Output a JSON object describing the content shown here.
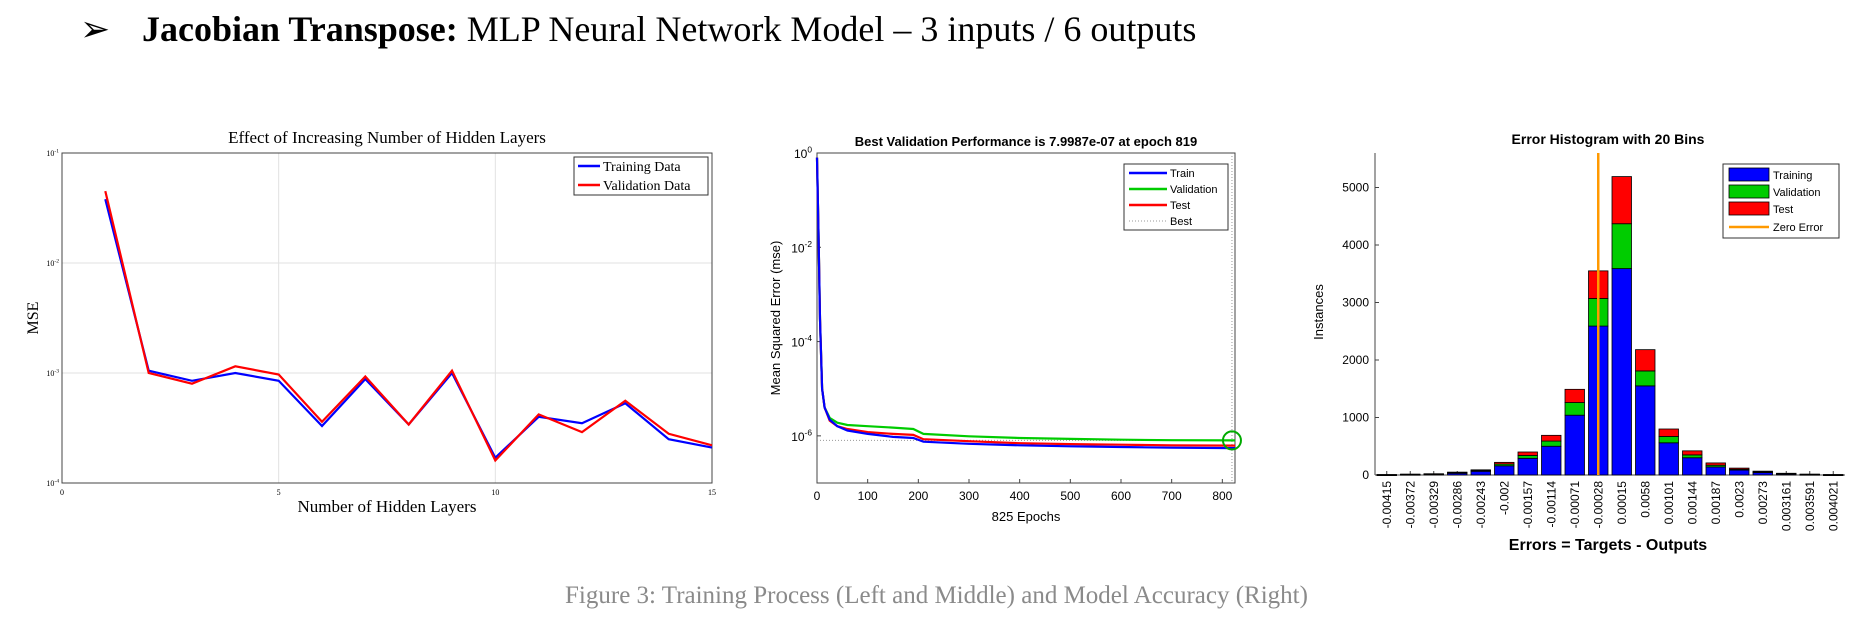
{
  "heading": {
    "bullet": "➢",
    "bold": "Jacobian Transpose:",
    "rest": " MLP Neural Network Model – 3 inputs / 6 outputs"
  },
  "caption": "Figure 3: Training Process (Left and Middle) and Model Accuracy (Right)",
  "chart_data": [
    {
      "type": "line",
      "title": "Effect of Increasing Number of Hidden Layers",
      "xlabel": "Number of Hidden Layers",
      "ylabel": "MSE",
      "xlim": [
        0,
        15
      ],
      "ylim_log10": [
        -4,
        -1
      ],
      "yscale": "log",
      "x_ticks": [
        "0",
        "5",
        "10",
        "15"
      ],
      "y_ticks": [
        "10^-4",
        "10^-3",
        "10^-2",
        "10^-1"
      ],
      "grid": true,
      "legend": "top-right",
      "x": [
        1,
        2,
        3,
        4,
        5,
        6,
        7,
        8,
        9,
        10,
        11,
        12,
        13,
        14,
        15
      ],
      "series": [
        {
          "name": "Training Data",
          "color": "#0000ff",
          "values": [
            0.038,
            0.00105,
            0.00085,
            0.001,
            0.00085,
            0.00033,
            0.00088,
            0.00034,
            0.001,
            0.00017,
            0.0004,
            0.00035,
            0.00053,
            0.00025,
            0.00021
          ]
        },
        {
          "name": "Validation Data",
          "color": "#ff0000",
          "values": [
            0.045,
            0.001,
            0.0008,
            0.00115,
            0.00097,
            0.00036,
            0.00093,
            0.00034,
            0.00105,
            0.00016,
            0.00042,
            0.00029,
            0.00056,
            0.00028,
            0.00022
          ]
        }
      ]
    },
    {
      "type": "line",
      "title": "Best Validation Performance is 7.9987e-07 at epoch 819",
      "xlabel": "825 Epochs",
      "ylabel": "Mean Squared Error  (mse)",
      "xlim": [
        0,
        825
      ],
      "ylim_log10": [
        -7,
        0
      ],
      "yscale": "log",
      "x_ticks": [
        "0",
        "100",
        "200",
        "300",
        "400",
        "500",
        "600",
        "700",
        "800"
      ],
      "y_ticks": [
        "10^0",
        "10^-2",
        "10^-4",
        "10^-6"
      ],
      "legend": "top-right",
      "best_epoch": 819,
      "best_value": 8e-07,
      "x": [
        0,
        3,
        6,
        10,
        15,
        25,
        40,
        60,
        100,
        150,
        190,
        210,
        300,
        400,
        500,
        600,
        700,
        825
      ],
      "series": [
        {
          "name": "Train",
          "color": "#0000ff",
          "values": [
            0.8,
            0.02,
            0.0003,
            1e-05,
            4e-06,
            2.2e-06,
            1.6e-06,
            1.3e-06,
            1.1e-06,
            9.5e-07,
            9e-07,
            7.5e-07,
            6.8e-07,
            6.3e-07,
            6e-07,
            5.8e-07,
            5.6e-07,
            5.5e-07
          ]
        },
        {
          "name": "Validation",
          "color": "#00cc00",
          "values": [
            0.8,
            0.02,
            0.0003,
            1e-05,
            4e-06,
            2.4e-06,
            1.9e-06,
            1.7e-06,
            1.6e-06,
            1.5e-06,
            1.4e-06,
            1.1e-06,
            9.8e-07,
            9e-07,
            8.6e-07,
            8.3e-07,
            8.1e-07,
            8e-07
          ]
        },
        {
          "name": "Test",
          "color": "#ff0000",
          "values": [
            0.8,
            0.02,
            0.0003,
            1e-05,
            4e-06,
            2.1e-06,
            1.6e-06,
            1.4e-06,
            1.2e-06,
            1.1e-06,
            1.05e-06,
            8.5e-07,
            7.7e-07,
            7e-07,
            6.7e-07,
            6.5e-07,
            6.3e-07,
            6.2e-07
          ]
        },
        {
          "name": "Best",
          "color": "#aaaaaa",
          "style": "dotted"
        }
      ]
    },
    {
      "type": "bar",
      "stacked": true,
      "title": "Error Histogram with 20 Bins",
      "xlabel": "Errors = Targets - Outputs",
      "ylabel": "Instances",
      "ylim": [
        0,
        5600
      ],
      "y_ticks": [
        "0",
        "1000",
        "2000",
        "3000",
        "4000",
        "5000"
      ],
      "legend": "top-right",
      "zero_error_bin": 9.5,
      "categories": [
        "-0.00415",
        "-0.00372",
        "-0.00329",
        "-0.00286",
        "-0.00243",
        "-0.002",
        "-0.00157",
        "-0.00114",
        "-0.00071",
        "-0.00028",
        "0.00015",
        "0.0058",
        "0.00101",
        "0.00144",
        "0.00187",
        "0.0023",
        "0.00273",
        "0.003161",
        "0.003591",
        "0.004021"
      ],
      "series": [
        {
          "name": "Training",
          "color": "#0000ff",
          "values": [
            5,
            10,
            15,
            35,
            65,
            160,
            290,
            500,
            1040,
            2590,
            3590,
            1550,
            560,
            300,
            140,
            85,
            45,
            20,
            10,
            5
          ]
        },
        {
          "name": "Validation",
          "color": "#00cc00",
          "values": [
            1,
            2,
            3,
            7,
            13,
            30,
            50,
            90,
            220,
            480,
            780,
            260,
            110,
            50,
            30,
            15,
            10,
            5,
            2,
            1
          ]
        },
        {
          "name": "Test",
          "color": "#ff0000",
          "values": [
            1,
            3,
            4,
            8,
            12,
            30,
            60,
            100,
            230,
            480,
            820,
            370,
            130,
            70,
            40,
            20,
            12,
            5,
            3,
            1
          ]
        },
        {
          "name": "Zero Error",
          "color": "#ff9900"
        }
      ]
    }
  ]
}
